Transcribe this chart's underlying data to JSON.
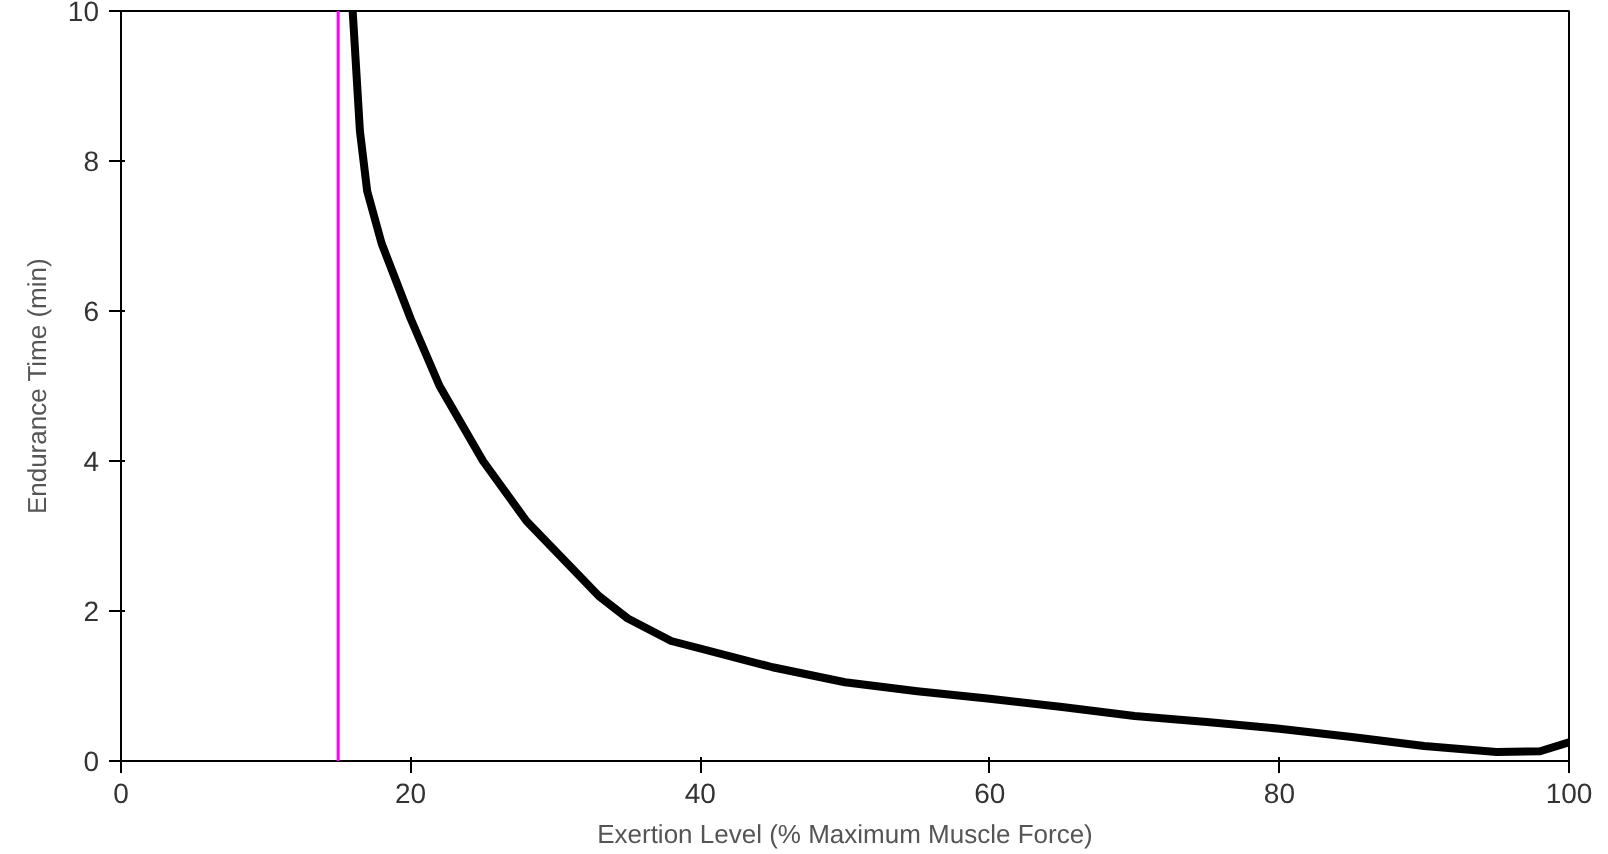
{
  "chart_data": {
    "type": "line",
    "xlabel": "Exertion Level (% Maximum Muscle Force)",
    "ylabel": "Endurance Time (min)",
    "xlim": [
      0,
      100
    ],
    "ylim": [
      0,
      10
    ],
    "xticks": [
      0,
      20,
      40,
      60,
      80,
      100
    ],
    "yticks": [
      0,
      2,
      4,
      6,
      8,
      10
    ],
    "grid": false,
    "marker": "none",
    "line_style": "solid",
    "series": [
      {
        "color": "#000000",
        "x": [
          16,
          16.5,
          17,
          18,
          19,
          20,
          22,
          25,
          28,
          30,
          33,
          35,
          38,
          40,
          45,
          50,
          55,
          60,
          65,
          70,
          75,
          80,
          85,
          90,
          95,
          98,
          100
        ],
        "values": [
          10,
          8.4,
          7.6,
          6.9,
          6.4,
          5.9,
          5.0,
          4.0,
          3.2,
          2.8,
          2.2,
          1.9,
          1.6,
          1.5,
          1.25,
          1.05,
          0.93,
          0.83,
          0.72,
          0.6,
          0.52,
          0.43,
          0.32,
          0.2,
          0.12,
          0.13,
          0.25
        ]
      }
    ],
    "ref_lines": [
      {
        "axis": "x",
        "value": 15,
        "color": "#ff00ff"
      }
    ]
  }
}
